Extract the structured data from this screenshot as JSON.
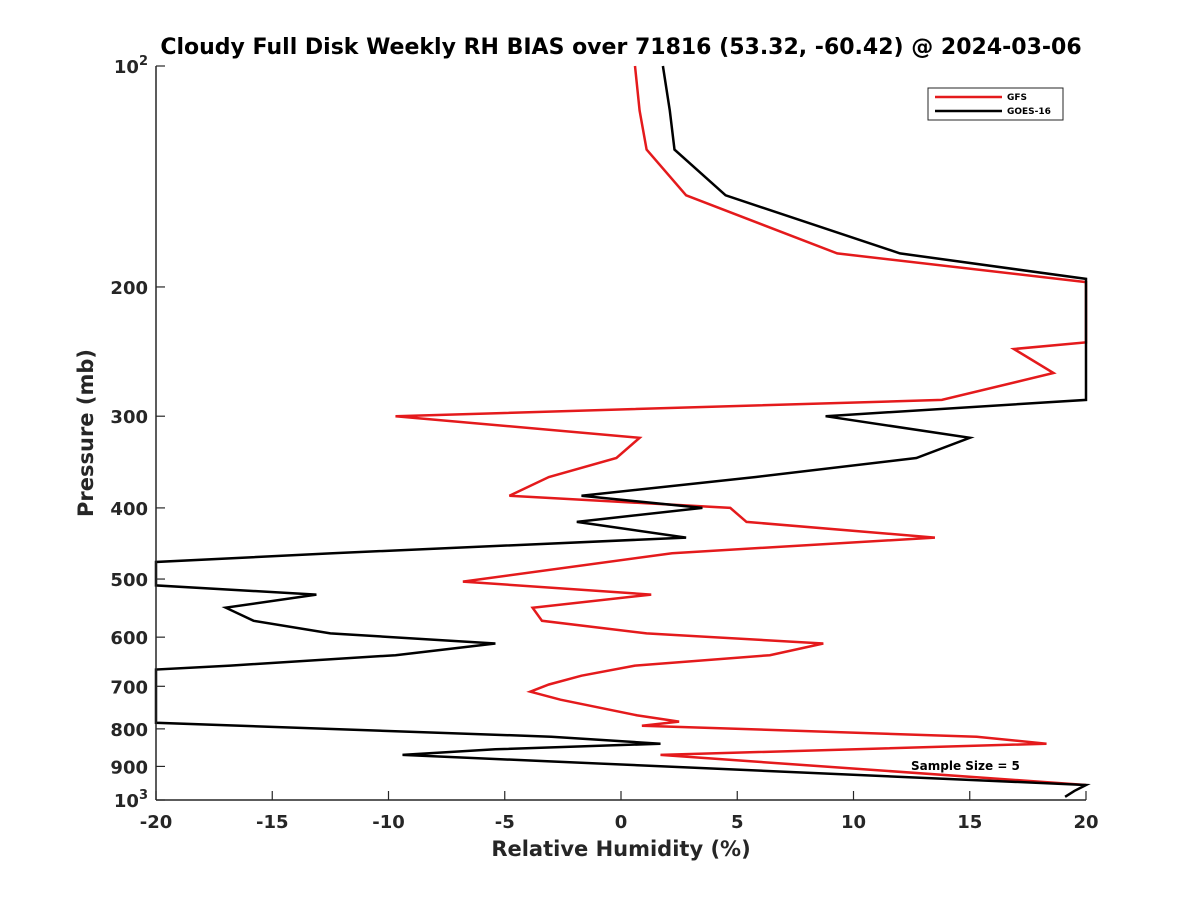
{
  "chart_data": {
    "type": "line",
    "title": "Cloudy Full Disk Weekly RH BIAS over 71816 (53.32, -60.42) @ 2024-03-06",
    "xlabel": "Relative Humidity (%)",
    "ylabel": "Pressure (mb)",
    "xlim": [
      -20,
      20
    ],
    "ylim": [
      100,
      1000
    ],
    "y_scale": "log",
    "y_reversed": true,
    "grid": false,
    "legend_position": "top-right",
    "x_ticks": [
      "-20",
      "-15",
      "-10",
      "-5",
      "0",
      "5",
      "10",
      "15",
      "20"
    ],
    "y_ticks": [
      {
        "value": 100,
        "base": "10",
        "exp": "2"
      },
      {
        "value": 200,
        "base": "200",
        "exp": ""
      },
      {
        "value": 300,
        "base": "300",
        "exp": ""
      },
      {
        "value": 400,
        "base": "400",
        "exp": ""
      },
      {
        "value": 500,
        "base": "500",
        "exp": ""
      },
      {
        "value": 600,
        "base": "600",
        "exp": ""
      },
      {
        "value": 700,
        "base": "700",
        "exp": ""
      },
      {
        "value": 800,
        "base": "800",
        "exp": ""
      },
      {
        "value": 900,
        "base": "900",
        "exp": ""
      },
      {
        "value": 1000,
        "base": "10",
        "exp": "3"
      }
    ],
    "annotation": "Sample Size = 5",
    "series": [
      {
        "name": "GFS",
        "color": "#e41a1c",
        "points": [
          [
            0.6,
            100
          ],
          [
            0.8,
            115
          ],
          [
            1.1,
            130
          ],
          [
            2.8,
            150
          ],
          [
            9.3,
            180
          ],
          [
            20,
            197
          ],
          [
            20,
            238
          ],
          [
            16.9,
            243
          ],
          [
            18.6,
            262
          ],
          [
            13.8,
            285
          ],
          [
            -9.7,
            300
          ],
          [
            0.8,
            321
          ],
          [
            -0.2,
            342
          ],
          [
            -3.1,
            363
          ],
          [
            -4.8,
            385
          ],
          [
            4.7,
            400
          ],
          [
            5.4,
            418
          ],
          [
            13.5,
            439
          ],
          [
            2.2,
            461
          ],
          [
            -6.8,
            504
          ],
          [
            1.3,
            525
          ],
          [
            -3.8,
            547
          ],
          [
            -3.4,
            570
          ],
          [
            1.1,
            593
          ],
          [
            8.7,
            612
          ],
          [
            6.4,
            635
          ],
          [
            0.6,
            656
          ],
          [
            -1.7,
            677
          ],
          [
            -3.1,
            696
          ],
          [
            -3.9,
            712
          ],
          [
            -2.6,
            730
          ],
          [
            0.7,
            767
          ],
          [
            2.5,
            782
          ],
          [
            0.9,
            792
          ],
          [
            15.3,
            820
          ],
          [
            18.3,
            838
          ],
          [
            1.7,
            868
          ],
          [
            20,
            954
          ]
        ]
      },
      {
        "name": "GOES-16",
        "color": "#000000",
        "points": [
          [
            1.8,
            100
          ],
          [
            2.1,
            115
          ],
          [
            2.3,
            130
          ],
          [
            4.5,
            150
          ],
          [
            12.0,
            180
          ],
          [
            20,
            195
          ],
          [
            20,
            285
          ],
          [
            8.8,
            300
          ],
          [
            15.0,
            321
          ],
          [
            12.7,
            342
          ],
          [
            5.8,
            363
          ],
          [
            -1.7,
            385
          ],
          [
            3.5,
            400
          ],
          [
            -1.9,
            418
          ],
          [
            2.8,
            439
          ],
          [
            -12.4,
            461
          ],
          [
            -20,
            474
          ],
          [
            -20,
            510
          ],
          [
            -13.1,
            525
          ],
          [
            -17.0,
            547
          ],
          [
            -15.8,
            570
          ],
          [
            -12.5,
            593
          ],
          [
            -5.4,
            612
          ],
          [
            -9.7,
            635
          ],
          [
            -16.8,
            656
          ],
          [
            -20,
            664
          ],
          [
            -20,
            785
          ],
          [
            -3.0,
            820
          ],
          [
            1.7,
            838
          ],
          [
            -5.4,
            853
          ],
          [
            -9.4,
            868
          ],
          [
            20,
            954
          ],
          [
            19.5,
            972
          ],
          [
            19.1,
            990
          ]
        ]
      }
    ]
  }
}
